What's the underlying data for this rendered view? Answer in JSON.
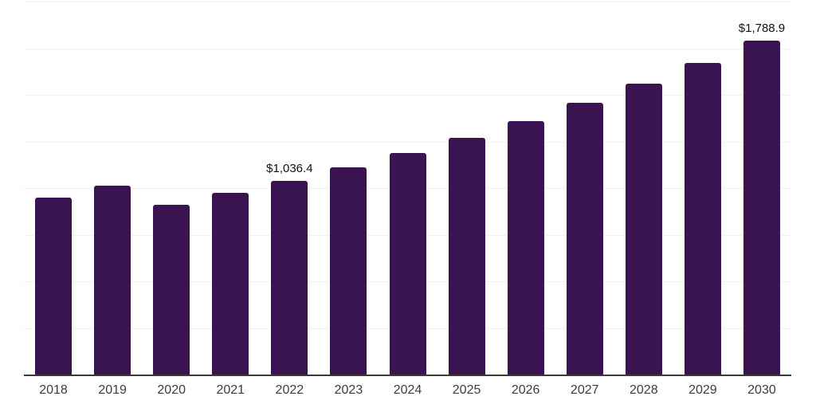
{
  "chart_data": {
    "type": "bar",
    "title": "",
    "xlabel": "",
    "ylabel": "",
    "categories": [
      "2018",
      "2019",
      "2020",
      "2021",
      "2022",
      "2023",
      "2024",
      "2025",
      "2026",
      "2027",
      "2028",
      "2029",
      "2030"
    ],
    "values": [
      947,
      1012,
      910,
      976,
      1036.4,
      1112,
      1190,
      1270,
      1360,
      1456,
      1560,
      1672,
      1788.9
    ],
    "data_labels": [
      "",
      "",
      "",
      "",
      "$1,036.4",
      "",
      "",
      "",
      "",
      "",
      "",
      "",
      "$1,788.9"
    ],
    "ylim": [
      0,
      2000
    ],
    "gridline_step": 250,
    "grid": "horizontal-only",
    "legend": "none",
    "y_axis_tick_labels_visible": false,
    "colors": {
      "bar": "#3a1450",
      "gridline": "#f2f2f2",
      "axis_line": "#3a3a3a",
      "x_tick_label": "#3d3d3d",
      "value_label": "#111111",
      "background": "#ffffff"
    }
  }
}
